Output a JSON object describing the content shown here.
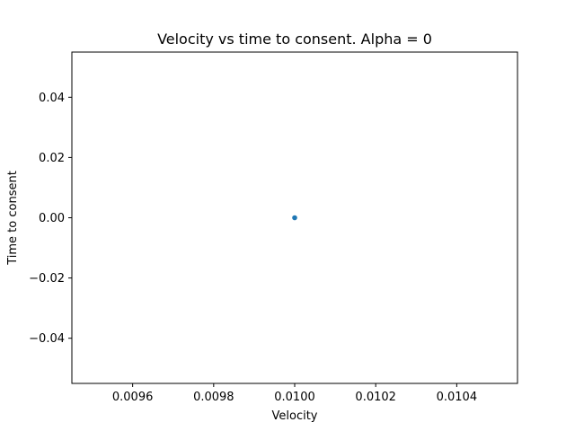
{
  "chart_data": {
    "type": "scatter",
    "title": "Velocity vs time to consent. Alpha = 0",
    "xlabel": "Velocity",
    "ylabel": "Time to consent",
    "xlim": [
      0.00945,
      0.01055
    ],
    "ylim": [
      -0.055,
      0.055
    ],
    "xticks": [
      0.0096,
      0.0098,
      0.01,
      0.0102,
      0.0104
    ],
    "xtick_labels": [
      "0.0096",
      "0.0098",
      "0.0100",
      "0.0102",
      "0.0104"
    ],
    "yticks": [
      0.04,
      0.02,
      0.0,
      -0.02,
      -0.04
    ],
    "ytick_labels": [
      "0.04",
      "0.02",
      "0.00",
      "−0.02",
      "−0.04"
    ],
    "grid": false,
    "legend": "none",
    "series": [
      {
        "color": "#1f77b4",
        "points": [
          {
            "x": 0.01,
            "y": 0.0
          }
        ]
      }
    ]
  }
}
